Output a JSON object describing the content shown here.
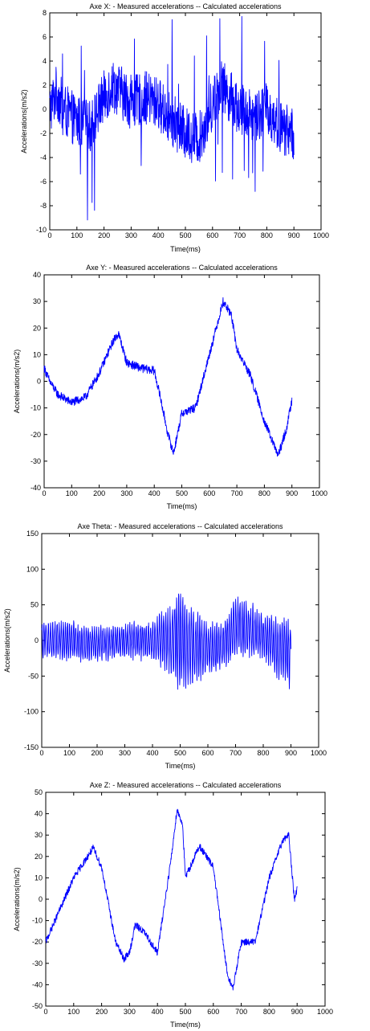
{
  "colors": {
    "series": "#0000ff",
    "axes": "#000000",
    "background": "#ffffff"
  },
  "chart_data": [
    {
      "type": "line",
      "title": "Axe X: - Measured accelerations -- Calculated accelerations",
      "xlabel": "Time(ms)",
      "ylabel": "Accelerations(m/s2)",
      "xlim": [
        0,
        1000
      ],
      "ylim": [
        -10,
        8
      ],
      "xticks": [
        0,
        100,
        200,
        300,
        400,
        500,
        600,
        700,
        800,
        900,
        1000
      ],
      "yticks": [
        -10,
        -8,
        -6,
        -4,
        -2,
        0,
        2,
        4,
        6,
        8
      ],
      "grid": false,
      "series": [
        {
          "style": "noisy",
          "x": [
            0,
            25,
            50,
            100,
            150,
            200,
            230,
            260,
            300,
            350,
            400,
            450,
            500,
            550,
            600,
            630,
            650,
            700,
            750,
            800,
            850,
            900
          ],
          "y": [
            0,
            1.5,
            0,
            -1,
            -1.5,
            1,
            2,
            1.5,
            0.5,
            1,
            0.5,
            -1,
            -2,
            -2.5,
            0.5,
            2,
            1.5,
            0,
            -0.5,
            0,
            -1.5,
            -2
          ],
          "amplitude": 2.2
        }
      ]
    },
    {
      "type": "line",
      "title": "Axe Y: - Measured accelerations -- Calculated accelerations",
      "xlabel": "Time(ms)",
      "ylabel": "Accelerations(m/s2)",
      "xlim": [
        0,
        1000
      ],
      "ylim": [
        -40,
        40
      ],
      "xticks": [
        0,
        100,
        200,
        300,
        400,
        500,
        600,
        700,
        800,
        900,
        1000
      ],
      "yticks": [
        -40,
        -30,
        -20,
        -10,
        0,
        10,
        20,
        30,
        40
      ],
      "grid": false,
      "series": [
        {
          "style": "smooth",
          "x": [
            0,
            20,
            50,
            100,
            150,
            200,
            250,
            270,
            300,
            350,
            400,
            420,
            450,
            470,
            500,
            550,
            600,
            650,
            680,
            700,
            750,
            800,
            850,
            880,
            900
          ],
          "y": [
            5,
            0,
            -5,
            -8,
            -6,
            3,
            15,
            18,
            7,
            5,
            4,
            -5,
            -20,
            -27,
            -12,
            -10,
            10,
            30,
            25,
            12,
            2,
            -15,
            -28,
            -18,
            -7
          ],
          "amplitude": 1.6
        }
      ]
    },
    {
      "type": "line",
      "title": "Axe Theta: - Measured accelerations -- Calculated accelerations",
      "xlabel": "Time(ms)",
      "ylabel": "Accelerations(m/s2)",
      "xlim": [
        0,
        1000
      ],
      "ylim": [
        -150,
        150
      ],
      "xticks": [
        0,
        100,
        200,
        300,
        400,
        500,
        600,
        700,
        800,
        900,
        1000
      ],
      "yticks": [
        -150,
        -100,
        -50,
        0,
        50,
        100,
        150
      ],
      "grid": false,
      "series": [
        {
          "style": "oscillating",
          "x": [
            0,
            100,
            200,
            300,
            400,
            450,
            500,
            550,
            600,
            650,
            700,
            750,
            800,
            850,
            900
          ],
          "y": [
            0,
            0,
            -5,
            0,
            0,
            0,
            0,
            -10,
            -10,
            -10,
            20,
            15,
            5,
            -10,
            -20
          ],
          "envelope": [
            25,
            30,
            25,
            25,
            30,
            45,
            75,
            55,
            40,
            35,
            45,
            40,
            35,
            45,
            55
          ]
        }
      ]
    },
    {
      "type": "line",
      "title": "Axe Z: - Measured accelerations -- Calculated accelerations",
      "xlabel": "Time(ms)",
      "ylabel": "Accelerations(m/s2)",
      "xlim": [
        0,
        1000
      ],
      "ylim": [
        -50,
        50
      ],
      "xticks": [
        0,
        100,
        200,
        300,
        400,
        500,
        600,
        700,
        800,
        900,
        1000
      ],
      "yticks": [
        -50,
        -40,
        -30,
        -20,
        -10,
        0,
        10,
        20,
        30,
        40,
        50
      ],
      "grid": false,
      "series": [
        {
          "style": "smooth",
          "x": [
            0,
            50,
            100,
            150,
            170,
            200,
            250,
            280,
            300,
            320,
            350,
            400,
            450,
            470,
            490,
            500,
            550,
            600,
            650,
            670,
            700,
            750,
            800,
            850,
            870,
            890,
            900
          ],
          "y": [
            -20,
            -5,
            10,
            20,
            24,
            15,
            -20,
            -28,
            -25,
            -12,
            -15,
            -25,
            20,
            42,
            35,
            10,
            25,
            15,
            -35,
            -42,
            -20,
            -20,
            10,
            28,
            30,
            0,
            5
          ],
          "amplitude": 1.6
        }
      ]
    }
  ]
}
